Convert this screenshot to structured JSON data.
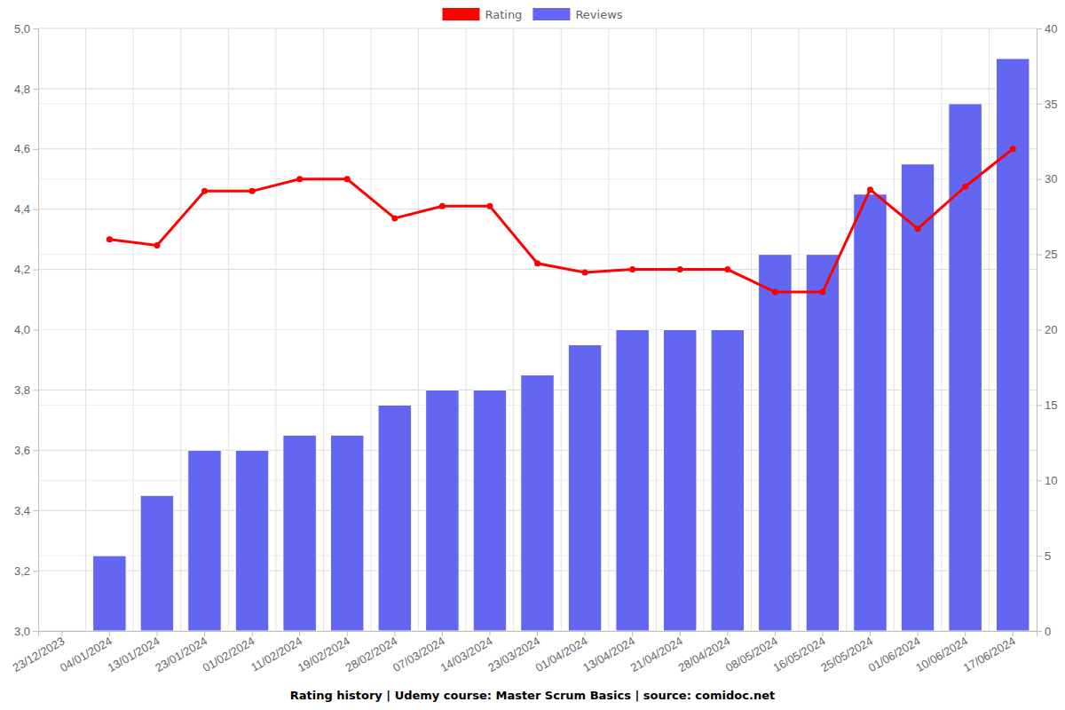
{
  "chart_data": {
    "type": "bar",
    "title": "Rating history | Udemy course: Master Scrum Basics | source: comidoc.net",
    "categories": [
      "23/12/2023",
      "04/01/2024",
      "13/01/2024",
      "23/01/2024",
      "01/02/2024",
      "11/02/2024",
      "19/02/2024",
      "28/02/2024",
      "07/03/2024",
      "14/03/2024",
      "23/03/2024",
      "01/04/2024",
      "13/04/2024",
      "21/04/2024",
      "28/04/2024",
      "08/05/2024",
      "16/05/2024",
      "25/05/2024",
      "01/06/2024",
      "10/06/2024",
      "17/06/2024"
    ],
    "series": [
      {
        "name": "Rating",
        "type": "line",
        "color": "#ff0000",
        "marker": "circle",
        "values": [
          null,
          4.3,
          4.28,
          4.46,
          4.46,
          4.5,
          4.5,
          4.37,
          4.41,
          4.41,
          4.22,
          4.19,
          4.2,
          4.2,
          4.2,
          4.125,
          4.125,
          4.465,
          4.335,
          4.475,
          4.6
        ]
      },
      {
        "name": "Reviews",
        "type": "bar",
        "color": "#6366f1",
        "axis": "y2",
        "values": [
          null,
          5,
          9,
          12,
          12,
          13,
          13,
          15,
          16,
          16,
          17,
          19,
          20,
          20,
          20,
          25,
          25,
          29,
          31,
          35,
          38
        ]
      }
    ],
    "ylim": [
      3.0,
      5.0
    ],
    "yticks": [
      {
        "value": 3.0,
        "label": "3,0"
      },
      {
        "value": 3.2,
        "label": "3,2"
      },
      {
        "value": 3.4,
        "label": "3,4"
      },
      {
        "value": 3.6,
        "label": "3,6"
      },
      {
        "value": 3.8,
        "label": "3,8"
      },
      {
        "value": 4.0,
        "label": "4,0"
      },
      {
        "value": 4.2,
        "label": "4,2"
      },
      {
        "value": 4.4,
        "label": "4,4"
      },
      {
        "value": 4.6,
        "label": "4,6"
      },
      {
        "value": 4.8,
        "label": "4,8"
      },
      {
        "value": 5.0,
        "label": "5,0"
      }
    ],
    "y2lim": [
      0,
      40
    ],
    "y2ticks": [
      0,
      5,
      10,
      15,
      20,
      25,
      30,
      35,
      40
    ],
    "grid": true,
    "legend": "top"
  }
}
